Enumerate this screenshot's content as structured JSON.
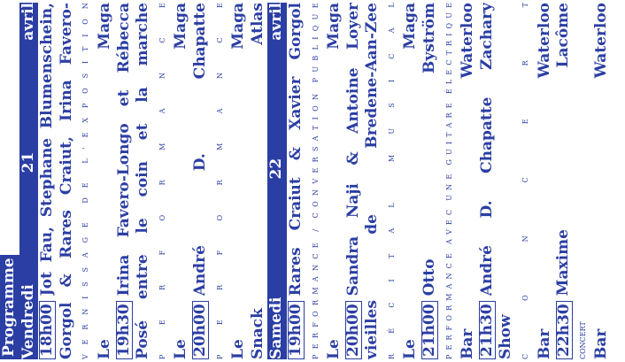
{
  "header": {
    "title": "Programme"
  },
  "days": [
    {
      "day": "Vendredi",
      "date": "21",
      "month": "avril",
      "events": [
        {
          "time": "18h00",
          "lines": [
            "Jot Fau, Stephane Blumenschein, Xavier",
            "Gorgol & Rares Craiut, Irina Favero-Longo"
          ],
          "kind": "VERNISSAGE DE L'EXPOSITION",
          "venue": "Le Maga"
        },
        {
          "time": "19h30",
          "lines": [
            "Irina Favero-Longo et Rébecca Konforti",
            "Posé entre le coin et la marche"
          ],
          "kind": "PERFORMANCE",
          "venue": "Le Maga"
        },
        {
          "time": "20h00",
          "lines": [
            "André D. Chapatte"
          ],
          "kind": "PERFORMANCE",
          "venue": "Le Maga"
        }
      ],
      "footer": "Snack Atlas"
    },
    {
      "day": "Samedi",
      "date": "22",
      "month": "avril",
      "events": [
        {
          "time": "19h00",
          "lines": [
            "Rares Craiut & Xavier Gorgol"
          ],
          "kind": "PERFORMANCE / CONVERSATION PUBLIQUE",
          "venue": "Le Maga"
        },
        {
          "time": "20h00",
          "lines": [
            "Sandra Naji & Antoine Loyer Rituel des",
            "vieilles de Bredene-Aan-Zee"
          ],
          "kind": "RÉCITAL MUSICAL",
          "venue": "Le Maga"
        },
        {
          "time": "21h00",
          "lines": [
            "Otto Byström"
          ],
          "kind": "PERFORMANCE AVEC UNE GUITARE ÉLECTRIQUE",
          "venue": "Bar Waterloo"
        },
        {
          "time": "21h30",
          "lines": [
            "André D. Chapatte Zachary Airhorn",
            "Show"
          ],
          "kind": "CONCERT",
          "venue": "Bar Waterloo"
        },
        {
          "time": "22h30",
          "lines": [
            "Maxime Lacôme"
          ],
          "kind": "CONCERT",
          "kind_style": "small",
          "venue": "Bar Waterloo"
        }
      ]
    }
  ]
}
